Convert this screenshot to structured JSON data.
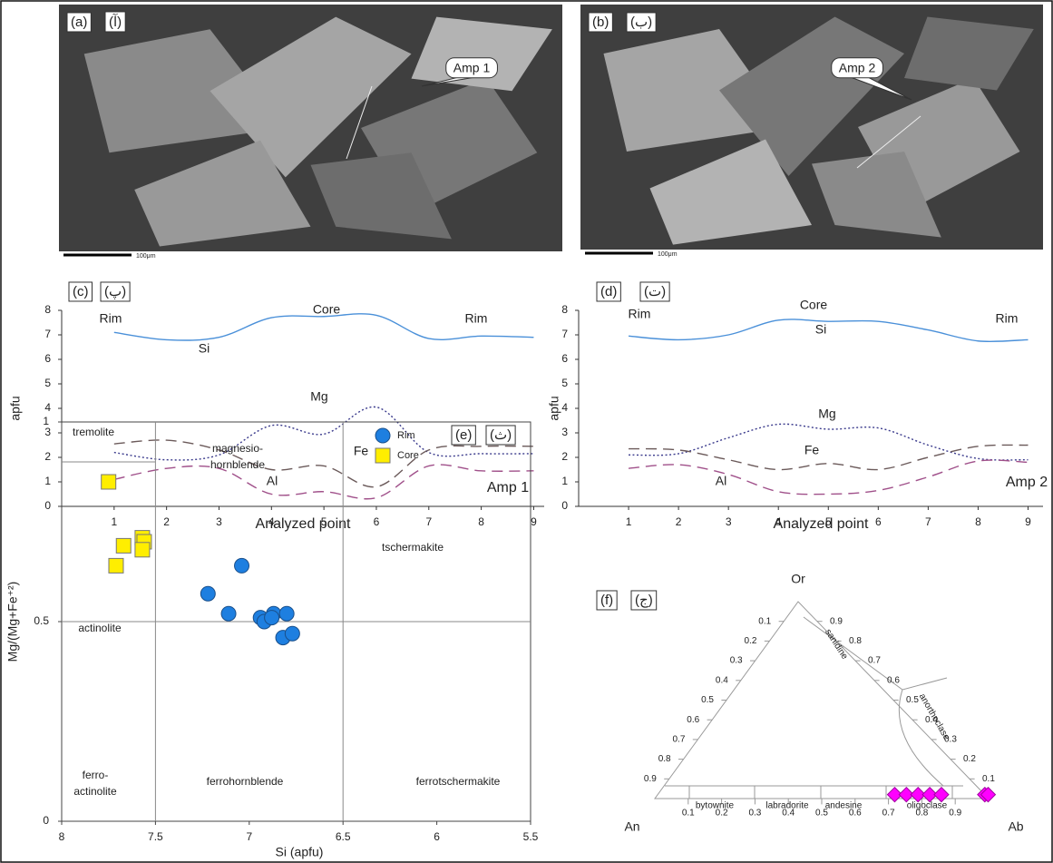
{
  "images": [
    {
      "panel_label": "(a)",
      "panel_label_fa": "(آ)",
      "callout": "Amp 1",
      "scale_label": "100μm"
    },
    {
      "panel_label": "(b)",
      "panel_label_fa": "(ب)",
      "callout": "Amp 2",
      "scale_label": "100μm"
    }
  ],
  "chart_data": [
    {
      "type": "line",
      "panel_label": "(c)",
      "panel_label_fa": "(پ)",
      "y_label": "apfu",
      "x_label": "Analyzed point",
      "x": [
        1,
        2,
        3,
        4,
        5,
        6,
        7,
        8,
        9
      ],
      "xlim": [
        0,
        9.2
      ],
      "xticks": [
        1,
        2,
        3,
        4,
        5,
        6,
        7,
        8,
        9
      ],
      "ylim": [
        0,
        8
      ],
      "yticks": [
        0,
        1,
        2,
        3,
        4,
        5,
        6,
        7,
        8
      ],
      "series": [
        {
          "name": "Si",
          "color": "#4a90d9",
          "style": "solid",
          "values": [
            7.1,
            6.8,
            6.9,
            7.7,
            7.75,
            7.8,
            6.85,
            6.95,
            6.9
          ]
        },
        {
          "name": "Mg",
          "color": "#3a3a8c",
          "style": "dotted",
          "values": [
            2.2,
            1.9,
            2.1,
            3.3,
            2.95,
            4.05,
            2.2,
            2.15,
            2.15
          ]
        },
        {
          "name": "Fe",
          "color": "#6b5a5a",
          "style": "dashed",
          "values": [
            2.55,
            2.7,
            2.3,
            1.5,
            1.65,
            0.8,
            2.3,
            2.45,
            2.45
          ]
        },
        {
          "name": "Al",
          "color": "#a0508a",
          "style": "dashed",
          "values": [
            1.1,
            1.55,
            1.55,
            0.5,
            0.6,
            0.35,
            1.65,
            1.45,
            1.45
          ]
        }
      ],
      "annotations": [
        "Rim",
        "Core",
        "Rim",
        "Amp 1"
      ]
    },
    {
      "type": "line",
      "panel_label": "(d)",
      "panel_label_fa": "(ت)",
      "y_label": "apfu",
      "x_label": "Analyzed point",
      "x": [
        1,
        2,
        3,
        4,
        5,
        6,
        7,
        8,
        9
      ],
      "xlim": [
        0,
        9.3
      ],
      "xticks": [
        1,
        2,
        3,
        4,
        5,
        6,
        7,
        8,
        9
      ],
      "ylim": [
        0,
        8
      ],
      "yticks": [
        0,
        1,
        2,
        3,
        4,
        5,
        6,
        7,
        8
      ],
      "series": [
        {
          "name": "Si",
          "color": "#4a90d9",
          "style": "solid",
          "values": [
            6.95,
            6.8,
            7.0,
            7.6,
            7.55,
            7.55,
            7.2,
            6.75,
            6.8
          ]
        },
        {
          "name": "Mg",
          "color": "#3a3a8c",
          "style": "dotted",
          "values": [
            2.1,
            2.15,
            2.8,
            3.35,
            3.15,
            3.2,
            2.5,
            1.95,
            1.9
          ]
        },
        {
          "name": "Fe",
          "color": "#6b5a5a",
          "style": "dashed",
          "values": [
            2.35,
            2.3,
            1.9,
            1.5,
            1.75,
            1.5,
            2.0,
            2.45,
            2.5
          ]
        },
        {
          "name": "Al",
          "color": "#a0508a",
          "style": "dashed",
          "values": [
            1.55,
            1.7,
            1.3,
            0.6,
            0.5,
            0.65,
            1.2,
            1.85,
            1.8
          ]
        }
      ],
      "annotations": [
        "Rim",
        "Core",
        "Rim",
        "Amp 2"
      ]
    },
    {
      "type": "scatter",
      "panel_label": "(e)",
      "panel_label_fa": "(ث)",
      "x_label": "Si (apfu)",
      "y_label": "Mg/(Mg+Fe⁺²)",
      "xlim": [
        8,
        5.5
      ],
      "xticks": [
        8,
        7.5,
        7,
        6.5,
        6,
        5.5
      ],
      "ylim": [
        0,
        1
      ],
      "yticks": [
        0,
        0.5,
        1
      ],
      "field_boundaries": [
        {
          "x": [
            7.5,
            7.5
          ],
          "y": [
            0,
            1
          ]
        },
        {
          "x": [
            6.5,
            6.5
          ],
          "y": [
            0,
            1
          ]
        },
        {
          "x": [
            8,
            5.5
          ],
          "y": [
            0.5,
            0.5
          ]
        },
        {
          "x": [
            8,
            7.5
          ],
          "y": [
            0.9,
            0.9
          ]
        }
      ],
      "field_labels": [
        "tremolite",
        "magnesio-",
        "hornblende",
        "tschermakite",
        "actinolite",
        "ferro-",
        "actinolite",
        "ferrohornblende",
        "ferrotschermakite"
      ],
      "series": [
        {
          "name": "Rim",
          "color": "#1e7fe0",
          "marker": "circle",
          "x": [
            7.22,
            7.04,
            7.11,
            6.94,
            6.87,
            6.8,
            6.92,
            6.82,
            6.77,
            6.88
          ],
          "values": [
            0.57,
            0.64,
            0.52,
            0.51,
            0.52,
            0.52,
            0.5,
            0.46,
            0.47,
            0.51
          ]
        },
        {
          "name": "Core",
          "color": "#ffee00",
          "marker": "square",
          "x": [
            7.75,
            7.67,
            7.71,
            7.57,
            7.56,
            7.57
          ],
          "values": [
            0.85,
            0.69,
            0.64,
            0.71,
            0.7,
            0.68
          ]
        }
      ]
    },
    {
      "type": "ternary",
      "panel_label": "(f)",
      "panel_label_fa": "(ج)",
      "vertices": [
        "An",
        "Ab",
        "Or"
      ],
      "bottom_ticks": [
        0.1,
        0.2,
        0.3,
        0.4,
        0.5,
        0.6,
        0.7,
        0.8,
        0.9
      ],
      "left_ticks": [
        0.1,
        0.2,
        0.3,
        0.4,
        0.5,
        0.6,
        0.7,
        0.8,
        0.9
      ],
      "right_ticks": [
        0.1,
        0.2,
        0.3,
        0.4,
        0.5,
        0.6,
        0.7,
        0.8,
        0.9
      ],
      "field_labels": [
        "sanidine",
        "anorthoclase",
        "bytownite",
        "labradorite",
        "andesine",
        "oligoclase"
      ],
      "series": [
        {
          "color": "#ff00ff",
          "ab": [
            0.71,
            0.745,
            0.78,
            0.815,
            0.85,
            0.98,
            0.99
          ],
          "or": [
            0.02,
            0.02,
            0.02,
            0.02,
            0.02,
            0.02,
            0.02
          ]
        }
      ]
    }
  ]
}
